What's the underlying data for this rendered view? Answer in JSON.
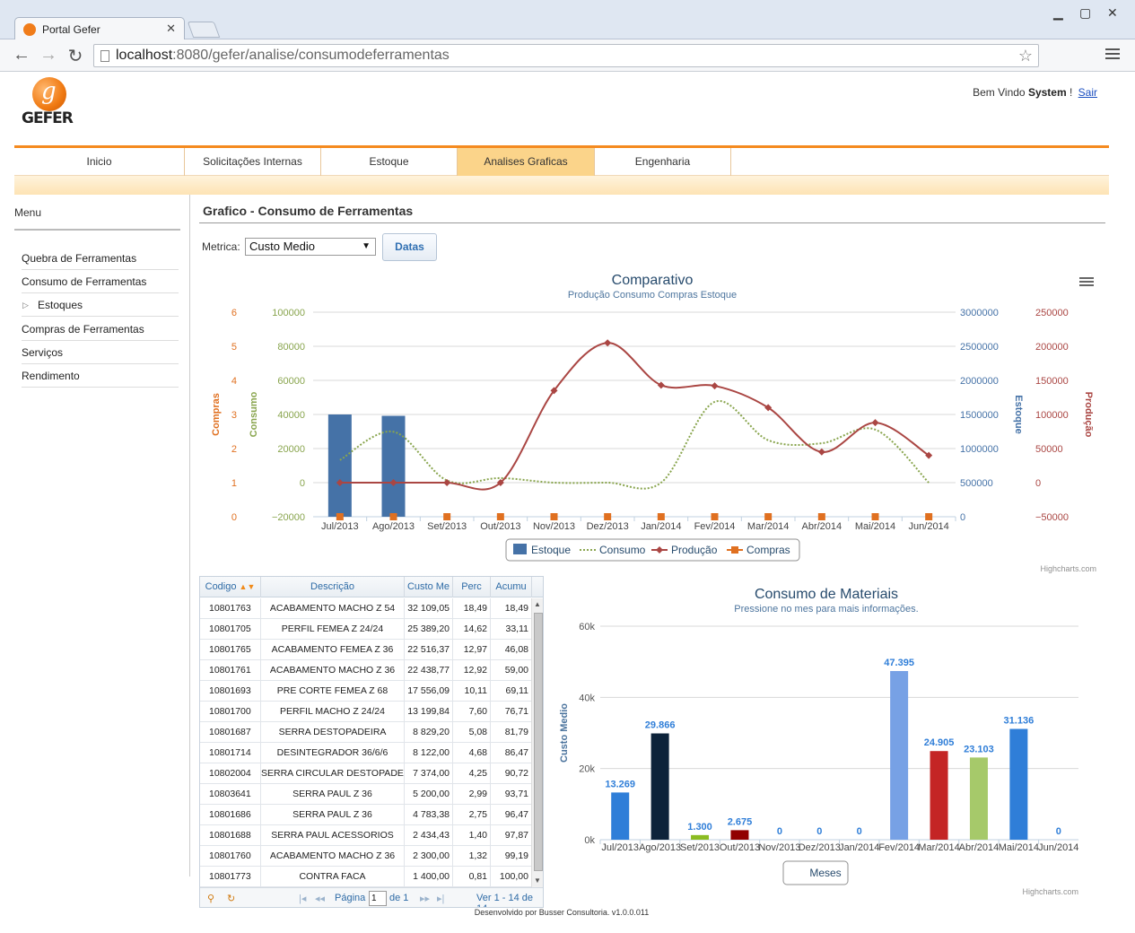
{
  "browser": {
    "tab_title": "Portal Gefer",
    "url_host": "localhost",
    "url_path": ":8080/gefer/analise/consumodeferramentas"
  },
  "header": {
    "logo_text": "GEFER",
    "welcome_prefix": "Bem Vindo",
    "user": "System",
    "welcome_suffix": " !",
    "logout": "Sair"
  },
  "nav": {
    "items": [
      "Inicio",
      "Solicitações Internas",
      "Estoque",
      "Analises Graficas",
      "Engenharia"
    ],
    "active": "Analises Graficas"
  },
  "sidebar": {
    "title": "Menu",
    "items": [
      "Quebra de Ferramentas",
      "Consumo de Ferramentas",
      "Estoques",
      "Compras de Ferramentas",
      "Serviços",
      "Rendimento"
    ]
  },
  "content": {
    "title": "Grafico - Consumo de Ferramentas",
    "metric_label": "Metrica:",
    "metric_value": "Custo Medio",
    "datas_button": "Datas"
  },
  "chart_data": [
    {
      "type": "line",
      "title": "Comparativo",
      "subtitle": "Produção Consumo Compras Estoque",
      "categories": [
        "Jul/2013",
        "Ago/2013",
        "Set/2013",
        "Out/2013",
        "Nov/2013",
        "Dez/2013",
        "Jan/2014",
        "Fev/2014",
        "Mar/2014",
        "Abr/2014",
        "Mai/2014",
        "Jun/2014"
      ],
      "axes": [
        {
          "label": "Compras",
          "ticks": [
            "6",
            "5",
            "4",
            "3",
            "2",
            "1",
            "0"
          ],
          "range": [
            0,
            6
          ],
          "color": "#e07020",
          "side": "left"
        },
        {
          "label": "Consumo",
          "ticks": [
            "100000",
            "80000",
            "60000",
            "40000",
            "20000",
            "0",
            "−20000"
          ],
          "range": [
            -20000,
            100000
          ],
          "color": "#89a54e",
          "side": "left"
        },
        {
          "label": "Estoque",
          "ticks": [
            "3000000",
            "2500000",
            "2000000",
            "1500000",
            "1000000",
            "500000",
            "0"
          ],
          "range": [
            0,
            3000000
          ],
          "color": "#4572a7",
          "side": "right"
        },
        {
          "label": "Produção",
          "ticks": [
            "250000",
            "200000",
            "150000",
            "100000",
            "50000",
            "0",
            "−50000"
          ],
          "range": [
            -50000,
            250000
          ],
          "color": "#aa4643",
          "side": "right"
        }
      ],
      "series": [
        {
          "name": "Estoque",
          "kind": "column",
          "color": "#4572a7",
          "values": [
            1500000,
            1480000,
            null,
            null,
            null,
            null,
            null,
            null,
            null,
            null,
            null,
            null
          ]
        },
        {
          "name": "Consumo",
          "kind": "spline-dotted",
          "color": "#89a54e",
          "values": [
            13269,
            29866,
            1300,
            2675,
            0,
            0,
            0,
            47395,
            24905,
            23103,
            31136,
            0
          ]
        },
        {
          "name": "Produção",
          "kind": "spline",
          "color": "#aa4643",
          "values": [
            0,
            0,
            0,
            0,
            135000,
            205000,
            143000,
            142000,
            110000,
            45000,
            88000,
            40000
          ]
        },
        {
          "name": "Compras",
          "kind": "scatter",
          "color": "#e07020",
          "values": [
            0,
            0,
            0,
            0,
            0,
            0,
            0,
            0,
            0,
            0,
            0,
            0
          ]
        }
      ],
      "legend_position": "bottom",
      "credit": "Highcharts.com"
    },
    {
      "type": "bar",
      "title": "Consumo de Materiais",
      "subtitle": "Pressione no mes para mais informações.",
      "ylabel": "Custo Medio",
      "yticks": [
        "60k",
        "40k",
        "20k",
        "0k"
      ],
      "ylim": [
        0,
        60000
      ],
      "categories": [
        "Jul/2013",
        "Ago/2013",
        "Set/2013",
        "Out/2013",
        "Nov/2013",
        "Dez/2013",
        "Jan/2014",
        "Fev/2014",
        "Mar/2014",
        "Abr/2014",
        "Mai/2014",
        "Jun/2014"
      ],
      "values": [
        13269,
        29866,
        1300,
        2675,
        0,
        0,
        0,
        47395,
        24905,
        23103,
        31136,
        0
      ],
      "value_labels": [
        "13.269",
        "29.866",
        "1.300",
        "2.675",
        "0",
        "0",
        "0",
        "47.395",
        "24.905",
        "23.103",
        "31.136",
        "0"
      ],
      "colors": [
        "#2f7ed8",
        "#0d233a",
        "#8bbc21",
        "#910000",
        "#1aadce",
        "#492970",
        "#f28f43",
        "#77a1e5",
        "#c42525",
        "#a6c96a",
        "#2f7ed8",
        "#0d233a"
      ],
      "legend": [
        "Meses"
      ],
      "credit": "Highcharts.com"
    }
  ],
  "table": {
    "headers": [
      "Codigo",
      "Descrição",
      "Custo Me",
      "Perc",
      "Acumu"
    ],
    "rows": [
      [
        "10801763",
        "ACABAMENTO MACHO Z 54",
        "32 109,05",
        "18,49",
        "18,49"
      ],
      [
        "10801705",
        "PERFIL FEMEA Z 24/24",
        "25 389,20",
        "14,62",
        "33,11"
      ],
      [
        "10801765",
        "ACABAMENTO FEMEA Z 36",
        "22 516,37",
        "12,97",
        "46,08"
      ],
      [
        "10801761",
        "ACABAMENTO MACHO Z 36",
        "22 438,77",
        "12,92",
        "59,00"
      ],
      [
        "10801693",
        "PRE CORTE FEMEA Z 68",
        "17 556,09",
        "10,11",
        "69,11"
      ],
      [
        "10801700",
        "PERFIL MACHO Z 24/24",
        "13 199,84",
        "7,60",
        "76,71"
      ],
      [
        "10801687",
        "SERRA DESTOPADEIRA",
        "8 829,20",
        "5,08",
        "81,79"
      ],
      [
        "10801714",
        "DESINTEGRADOR 36/6/6",
        "8 122,00",
        "4,68",
        "86,47"
      ],
      [
        "10802004",
        "SERRA CIRCULAR DESTOPADEIRA",
        "7 374,00",
        "4,25",
        "90,72"
      ],
      [
        "10803641",
        "SERRA PAUL Z 36",
        "5 200,00",
        "2,99",
        "93,71"
      ],
      [
        "10801686",
        "SERRA PAUL Z 36",
        "4 783,38",
        "2,75",
        "96,47"
      ],
      [
        "10801688",
        "SERRA PAUL ACESSORIOS",
        "2 434,43",
        "1,40",
        "97,87"
      ],
      [
        "10801760",
        "ACABAMENTO MACHO Z 36",
        "2 300,00",
        "1,32",
        "99,19"
      ],
      [
        "10801773",
        "CONTRA FACA",
        "1 400,00",
        "0,81",
        "100,00"
      ]
    ],
    "pager": {
      "page_label": "Página",
      "page_value": "1",
      "of_label": "de 1",
      "summary": "Ver 1 - 14 de 14"
    }
  },
  "footer": {
    "text": "Desenvolvido por Busser Consultoria. v1.0.0.011"
  }
}
